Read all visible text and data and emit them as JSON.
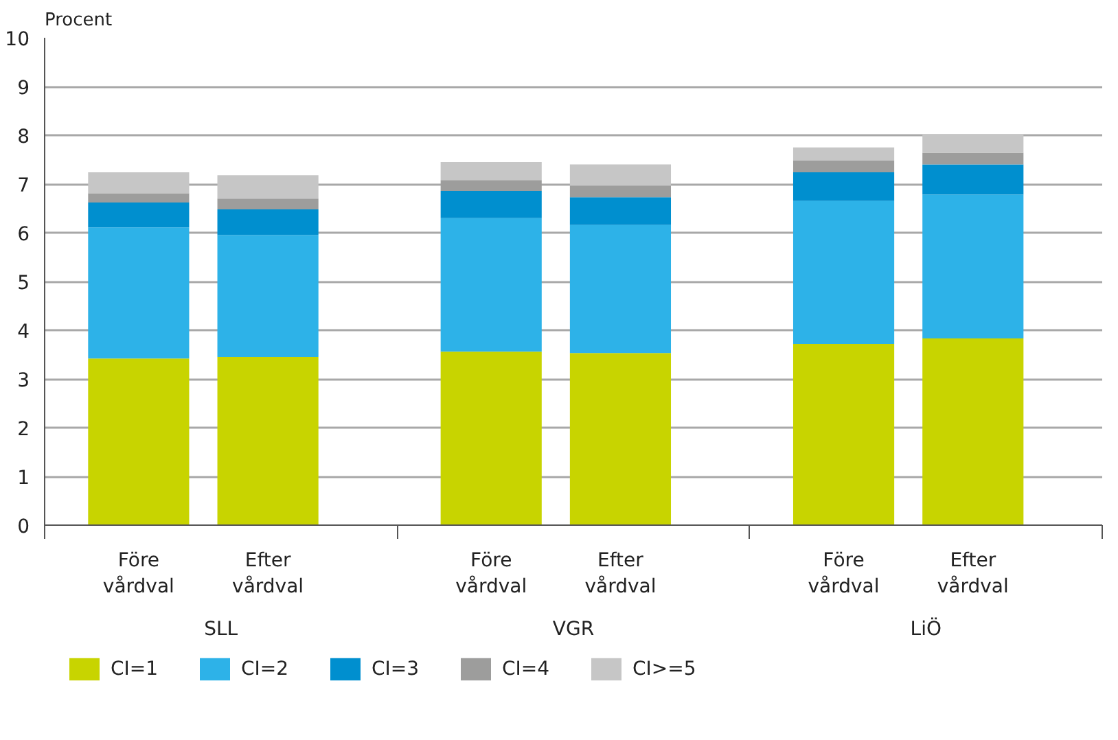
{
  "chart_data": {
    "type": "bar",
    "stacked": true,
    "ylabel": "Procent",
    "categories": [
      "Före vårdval",
      "Efter vårdval",
      "Före vårdval",
      "Efter vårdval",
      "Före vårdval",
      "Efter vårdval"
    ],
    "annotations": [
      "SLL",
      "VGR",
      "LiÖ"
    ],
    "series": [
      {
        "name": "CI=1",
        "color": "#c8d400",
        "values": [
          3.42,
          3.45,
          3.56,
          3.53,
          3.72,
          3.83
        ]
      },
      {
        "name": "CI=2",
        "color": "#2db2e8",
        "values": [
          2.69,
          2.5,
          2.74,
          2.63,
          2.93,
          2.95
        ]
      },
      {
        "name": "CI=3",
        "color": "#008fcf",
        "values": [
          0.51,
          0.53,
          0.56,
          0.57,
          0.59,
          0.62
        ]
      },
      {
        "name": "CI=4",
        "color": "#9d9d9c",
        "values": [
          0.19,
          0.22,
          0.22,
          0.24,
          0.24,
          0.24
        ]
      },
      {
        "name": "CI>=5",
        "color": "#c6c6c6",
        "values": [
          0.43,
          0.48,
          0.37,
          0.43,
          0.27,
          0.38
        ]
      }
    ],
    "ylim": [
      0,
      10
    ],
    "yticks": [
      0,
      1,
      2,
      3,
      4,
      5,
      6,
      7,
      8,
      9,
      10
    ],
    "grid": "y",
    "legend": "bottom"
  }
}
